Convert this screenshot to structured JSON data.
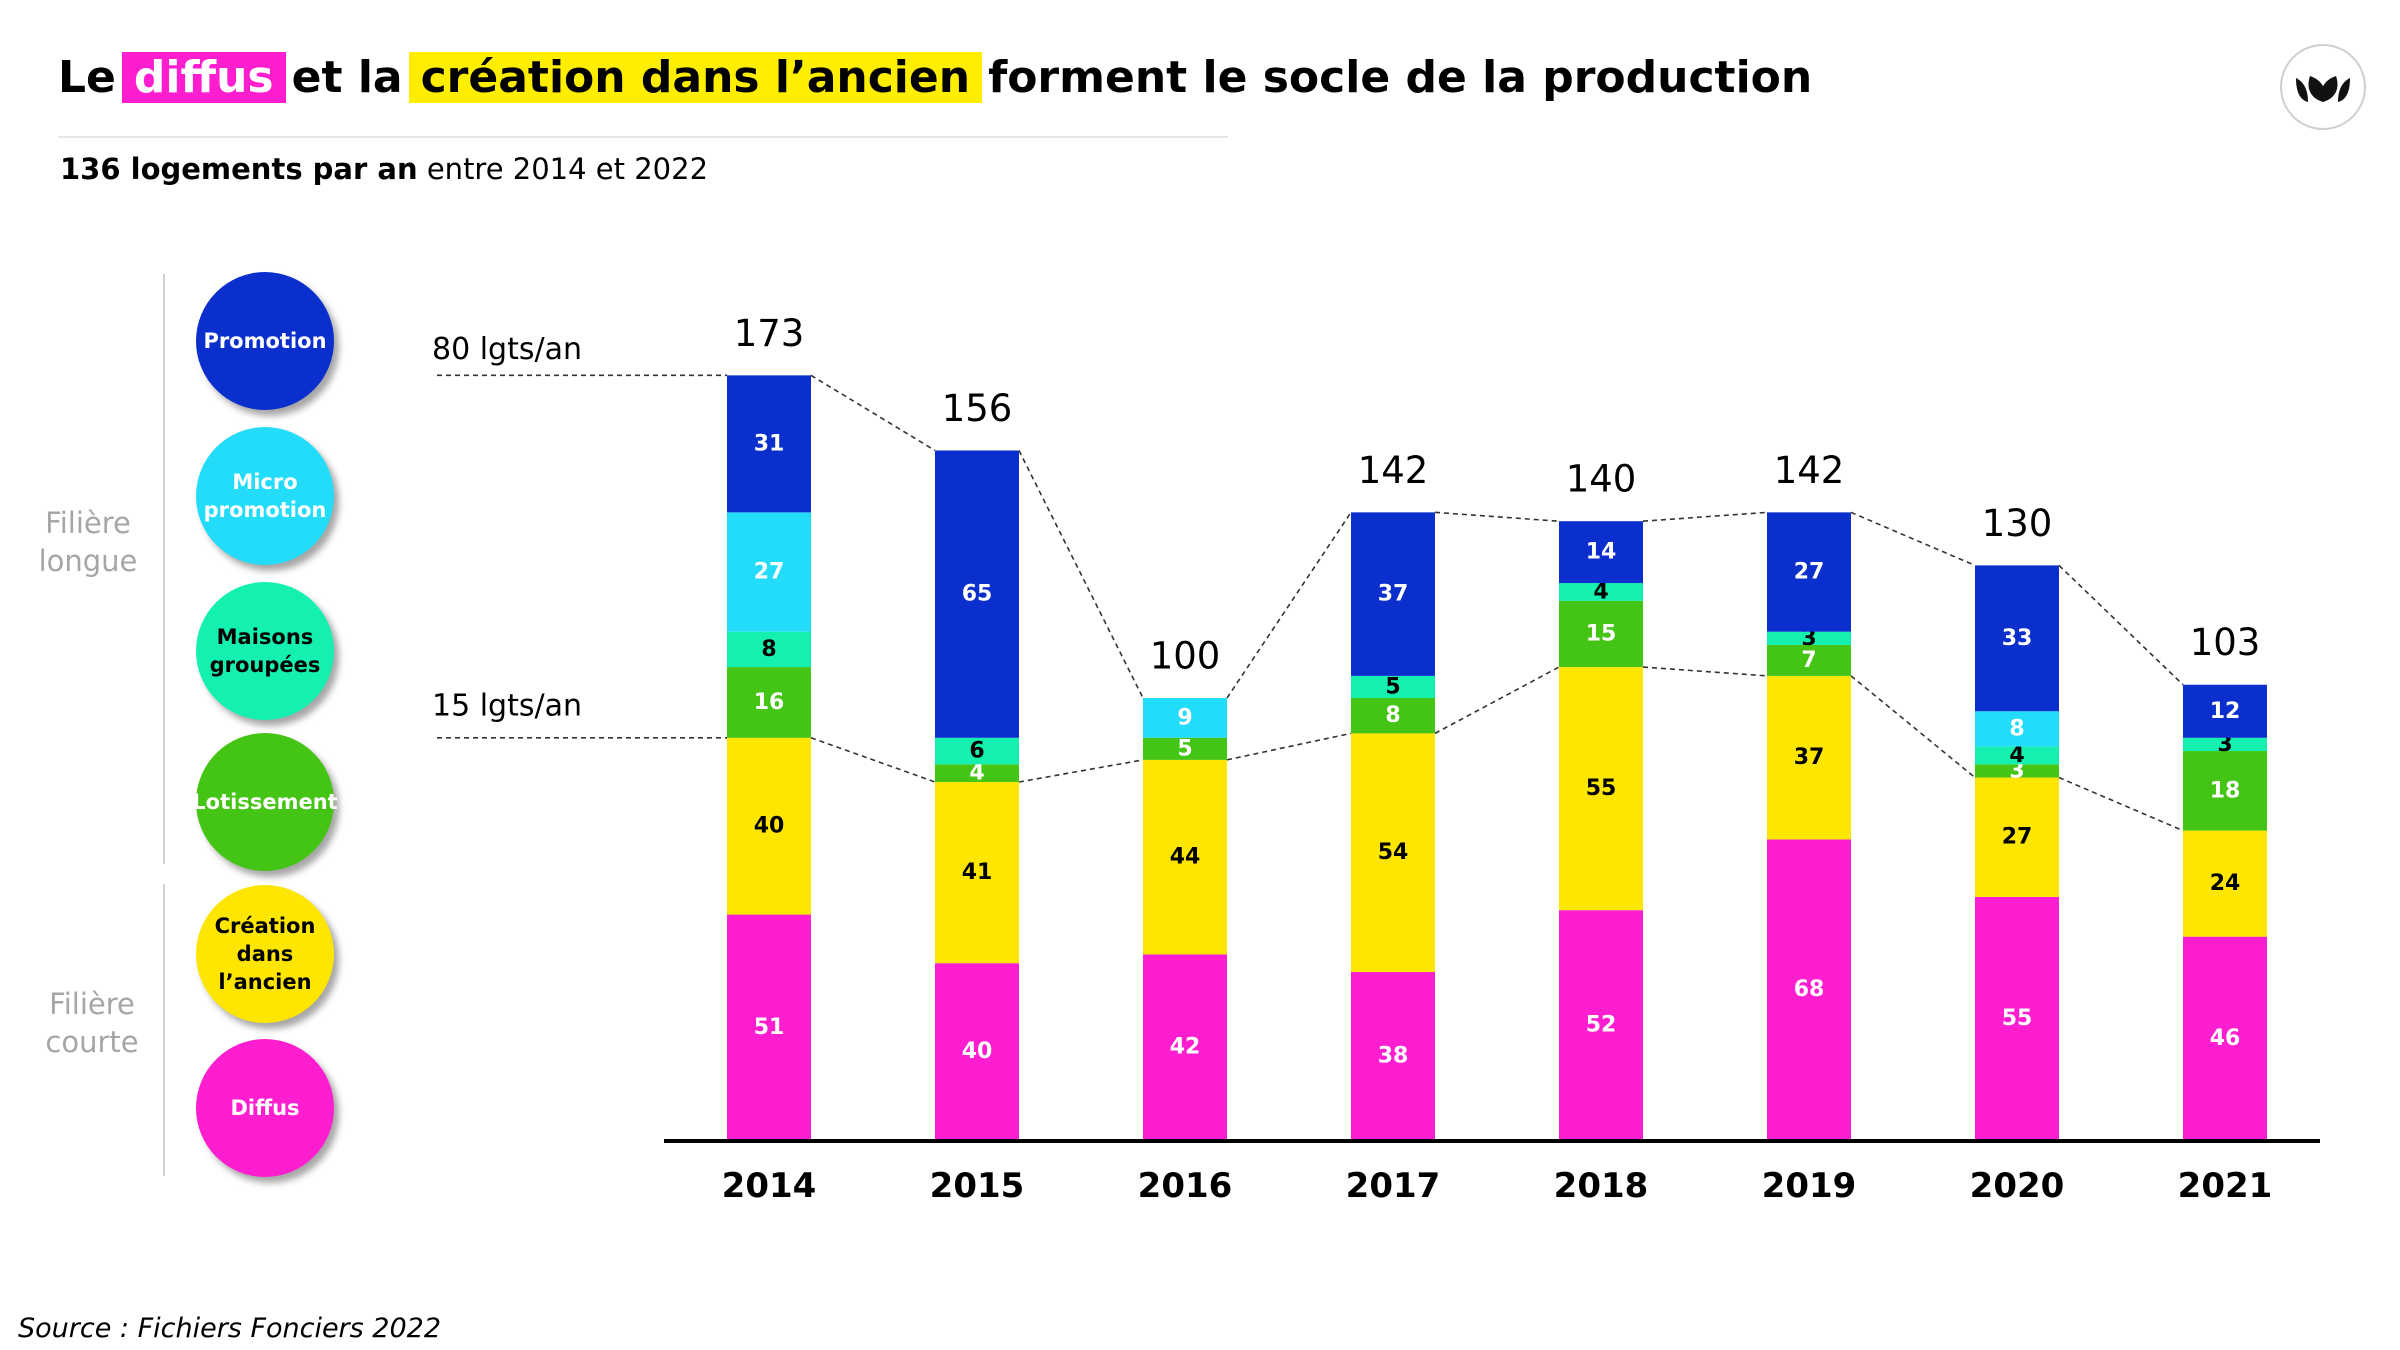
{
  "title": {
    "part1": "Le",
    "highlight1": "diffus",
    "part2": "et la",
    "highlight2": "création dans l’ancien",
    "part3": "forment le socle de la production"
  },
  "subtitle": {
    "bold": "136 logements par an",
    "rest": "entre 2014 et 2022"
  },
  "filieres": {
    "longue": [
      "Filière",
      "longue"
    ],
    "courte": [
      "Filière",
      "courte"
    ]
  },
  "legend": [
    {
      "lines": [
        "Promotion"
      ],
      "color": "#0a2fcc",
      "text_color": "#ffffff"
    },
    {
      "lines": [
        "Micro",
        "promotion"
      ],
      "color": "#22dcfa",
      "text_color": "#ffffff"
    },
    {
      "lines": [
        "Maisons",
        "groupées"
      ],
      "color": "#14f0b0",
      "text_color": "#000000"
    },
    {
      "lines": [
        "Lotissement"
      ],
      "color": "#44c414",
      "text_color": "#ffffff"
    },
    {
      "lines": [
        "Création",
        "dans",
        "l’ancien"
      ],
      "color": "#ffe600",
      "text_color": "#000000"
    },
    {
      "lines": [
        "Diffus"
      ],
      "color": "#ff1ecf",
      "text_color": "#ffffff"
    }
  ],
  "source": "Source : Fichiers Fonciers 2022",
  "chart_data": {
    "type": "bar",
    "stacked": true,
    "categories": [
      "2014",
      "2015",
      "2016",
      "2017",
      "2018",
      "2019",
      "2020",
      "2021"
    ],
    "series": [
      {
        "name": "Diffus",
        "color": "#ff1ecf",
        "label_color": "#ffffff",
        "values": [
          51,
          40,
          42,
          38,
          52,
          68,
          55,
          46
        ]
      },
      {
        "name": "Création dans l’ancien",
        "color": "#ffe600",
        "label_color": "#000000",
        "values": [
          40,
          41,
          44,
          54,
          55,
          37,
          27,
          24
        ]
      },
      {
        "name": "Lotissement",
        "color": "#44c414",
        "label_color": "#ffffff",
        "values": [
          16,
          4,
          5,
          8,
          15,
          7,
          3,
          18
        ]
      },
      {
        "name": "Maisons groupées",
        "color": "#14f0b0",
        "label_color": "#000000",
        "values": [
          8,
          6,
          0,
          5,
          4,
          3,
          4,
          3
        ]
      },
      {
        "name": "Micro promotion",
        "color": "#22dcfa",
        "label_color": "#ffffff",
        "values": [
          27,
          0,
          9,
          0,
          0,
          0,
          8,
          0
        ]
      },
      {
        "name": "Promotion",
        "color": "#0a2fcc",
        "label_color": "#ffffff",
        "values": [
          31,
          65,
          0,
          37,
          14,
          27,
          33,
          12
        ]
      }
    ],
    "totals": [
      173,
      156,
      100,
      142,
      140,
      142,
      130,
      103
    ],
    "annotations": [
      {
        "text": "80 lgts/an",
        "series_boundary": "total"
      },
      {
        "text": "15 lgts/an",
        "series_boundary": "short_chain"
      }
    ],
    "ylim": [
      0,
      173
    ],
    "grid": false,
    "legend_position": "left"
  }
}
